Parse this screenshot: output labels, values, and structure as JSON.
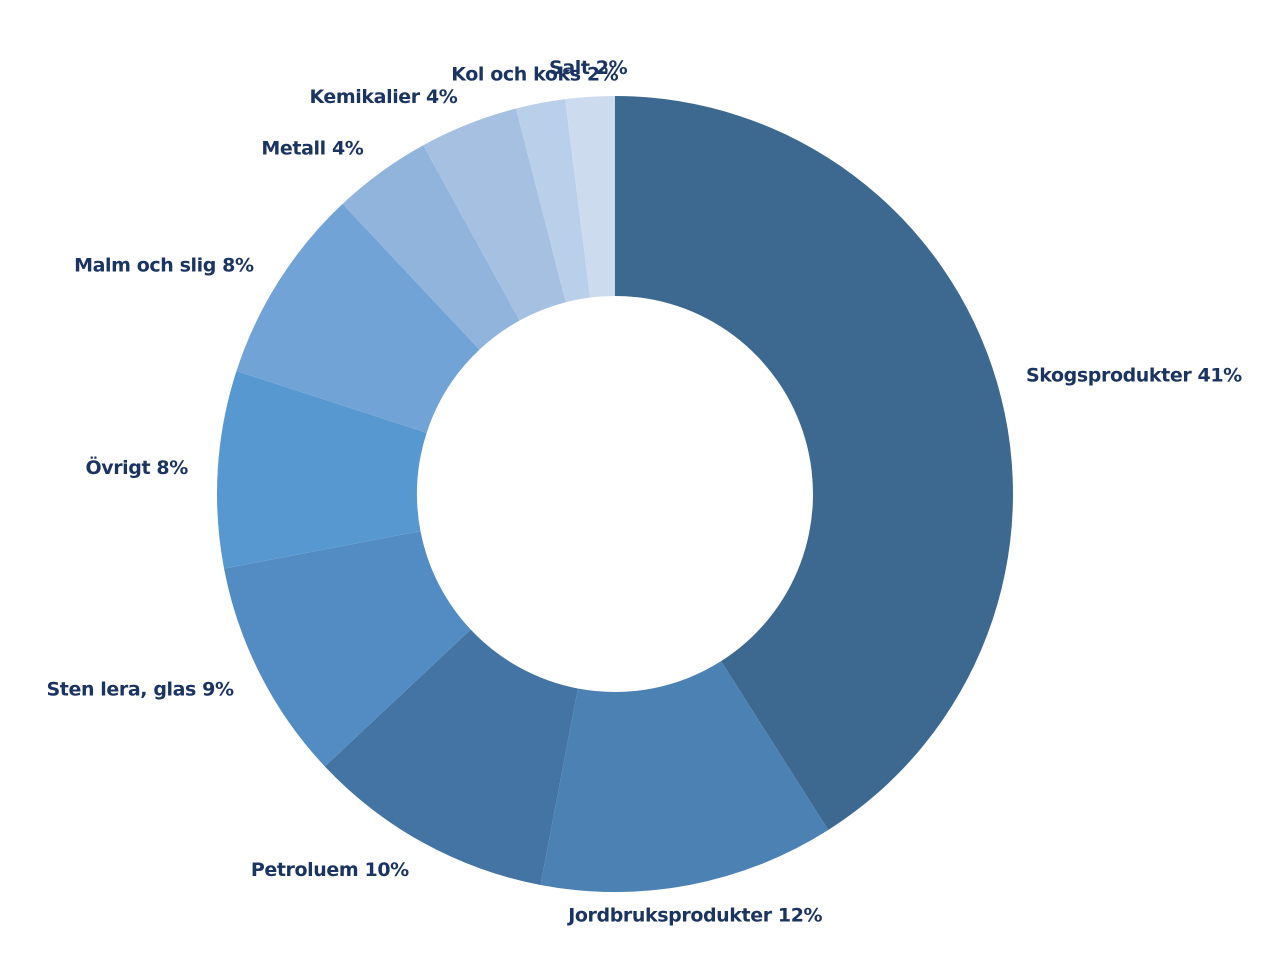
{
  "chart_data": {
    "type": "pie",
    "donut": true,
    "title": "",
    "slices": [
      {
        "label": "Skogsprodukter 41%",
        "value": 41,
        "color": "#3d6990"
      },
      {
        "label": "Jordbruksprodukter 12%",
        "value": 12,
        "color": "#4b81b3"
      },
      {
        "label": "Petroluem 10%",
        "value": 10,
        "color": "#4474a3"
      },
      {
        "label": "Sten lera, glas 9%",
        "value": 9,
        "color": "#528cc2"
      },
      {
        "label": "Övrigt 8%",
        "value": 8,
        "color": "#5898d0"
      },
      {
        "label": "Malm och slig 8%",
        "value": 8,
        "color": "#71a3d7"
      },
      {
        "label": "Metall 4%",
        "value": 4,
        "color": "#91b4dd"
      },
      {
        "label": "Kemikalier 4%",
        "value": 4,
        "color": "#a6c0e2"
      },
      {
        "label": "Kol och koks 2%",
        "value": 2,
        "color": "#bacfea"
      },
      {
        "label": "Salt 2%",
        "value": 2,
        "color": "#cddbef"
      }
    ],
    "start": "top",
    "direction": "clockwise",
    "legend": "none"
  }
}
